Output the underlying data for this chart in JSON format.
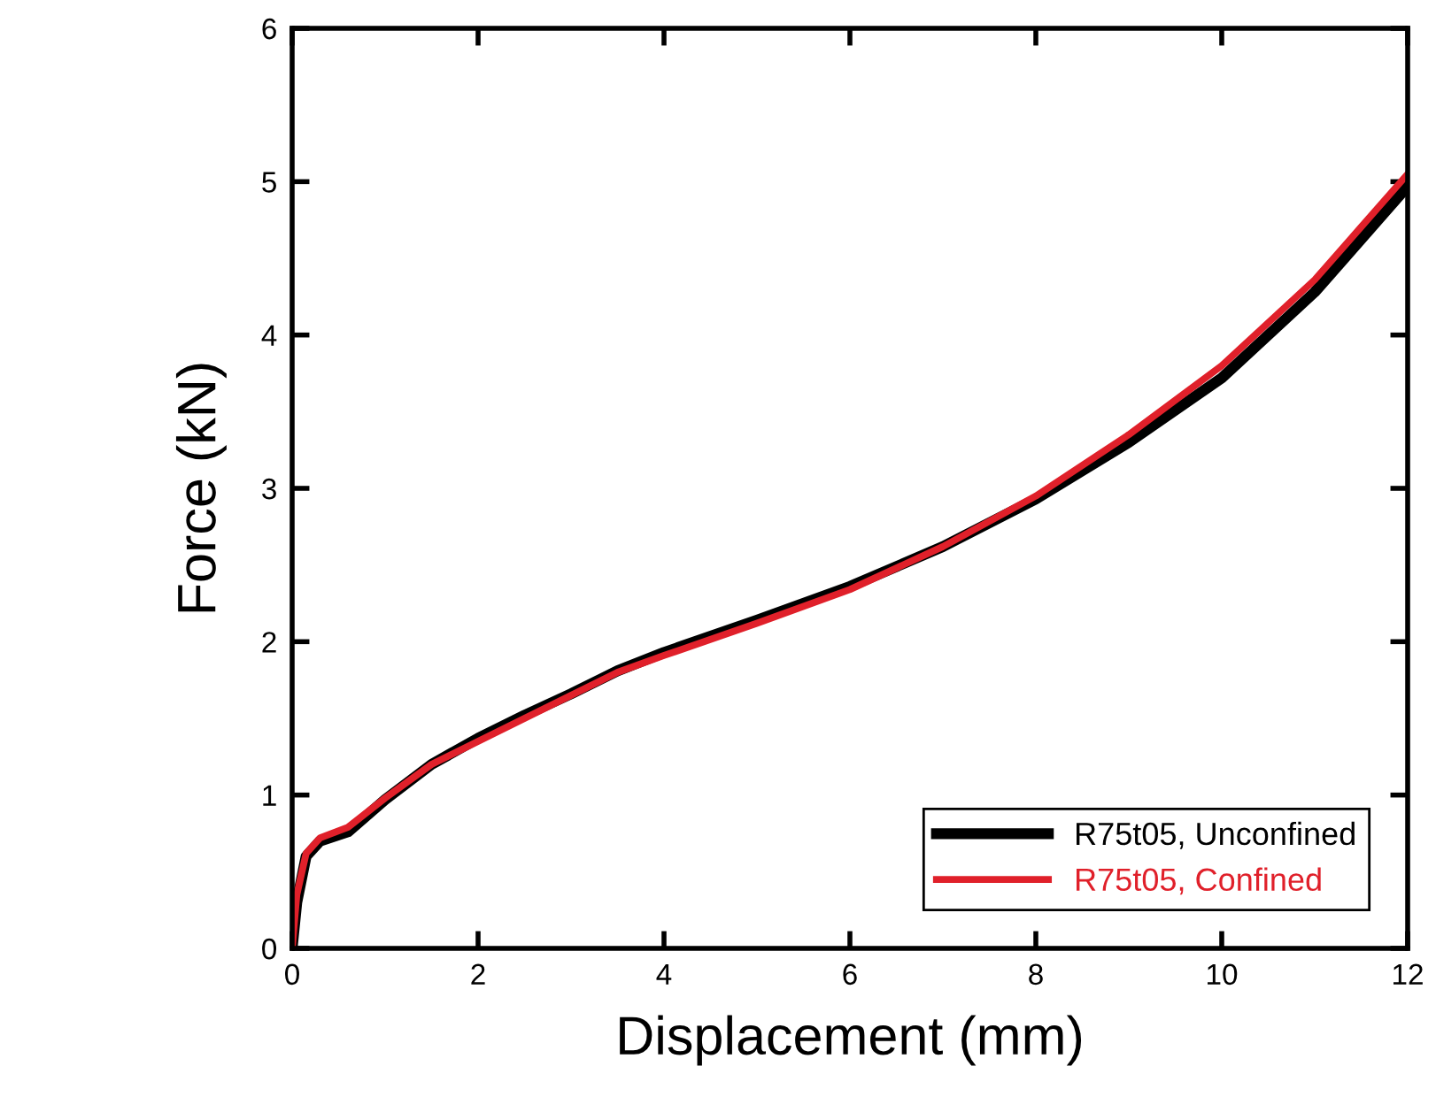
{
  "chart_data": {
    "type": "line",
    "xlabel": "Displacement (mm)",
    "ylabel": "Force (kN)",
    "xlim": [
      0,
      12
    ],
    "ylim": [
      0,
      6
    ],
    "xticks": [
      0,
      2,
      4,
      6,
      8,
      10,
      12
    ],
    "yticks": [
      0,
      1,
      2,
      3,
      4,
      5,
      6
    ],
    "grid": false,
    "legend": "bottom right",
    "marker": "none",
    "line_style": "solid",
    "series": [
      {
        "name": "R75t05, Unconfined",
        "color": "#000000",
        "x": [
          0,
          0.05,
          0.15,
          0.3,
          0.6,
          1,
          1.5,
          2,
          2.5,
          3,
          3.5,
          4,
          5,
          6,
          7,
          8,
          9,
          10,
          11,
          12
        ],
        "values": [
          0,
          0.3,
          0.6,
          0.7,
          0.76,
          0.97,
          1.2,
          1.37,
          1.52,
          1.66,
          1.81,
          1.93,
          2.14,
          2.36,
          2.62,
          2.93,
          3.3,
          3.72,
          4.28,
          4.97
        ]
      },
      {
        "name": "R75t05, Confined",
        "color": "#e0202a",
        "x": [
          0,
          0.05,
          0.15,
          0.3,
          0.6,
          1,
          1.5,
          2,
          2.5,
          3,
          3.5,
          4,
          5,
          6,
          7,
          8,
          9,
          10,
          11,
          12
        ],
        "values": [
          0,
          0.35,
          0.62,
          0.72,
          0.79,
          0.98,
          1.2,
          1.35,
          1.5,
          1.65,
          1.8,
          1.91,
          2.12,
          2.34,
          2.62,
          2.95,
          3.35,
          3.8,
          4.36,
          5.05
        ]
      }
    ]
  }
}
